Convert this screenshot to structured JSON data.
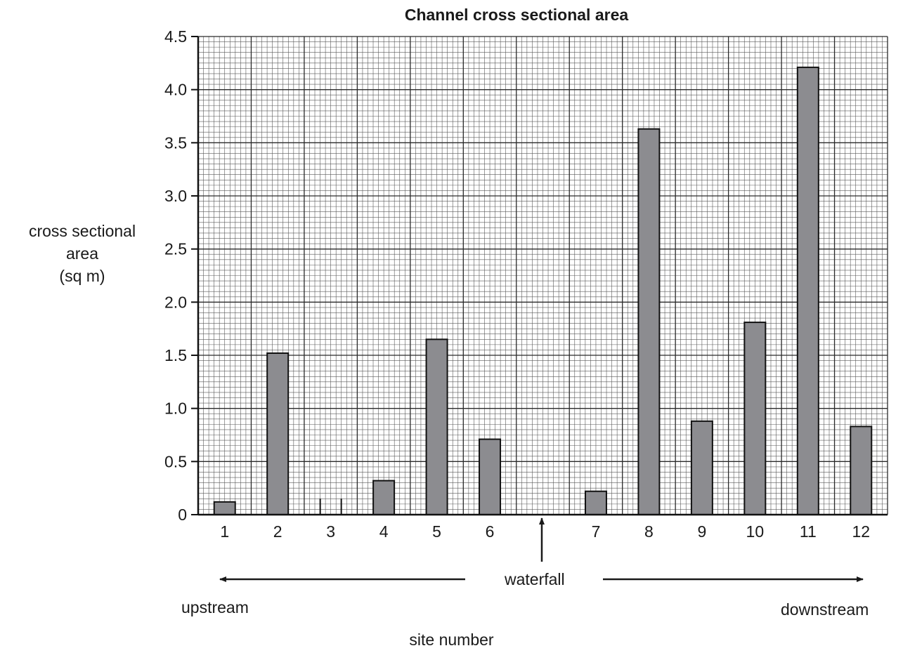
{
  "chart_data": {
    "type": "bar",
    "title": "Channel cross sectional area",
    "ylabel": [
      "cross sectional",
      "area",
      "(sq m)"
    ],
    "xlabel": "site number",
    "ylim": [
      0,
      4.5
    ],
    "y_ticks": [
      "0",
      "0.5",
      "1.0",
      "1.5",
      "2.0",
      "2.5",
      "3.0",
      "3.5",
      "4.0",
      "4.5"
    ],
    "grid": true,
    "categories": [
      "1",
      "2",
      "3",
      "4",
      "5",
      "6",
      "7",
      "8",
      "9",
      "10",
      "11",
      "12"
    ],
    "values": [
      0.12,
      1.52,
      null,
      0.32,
      1.65,
      0.71,
      0.22,
      3.63,
      0.88,
      1.81,
      4.21,
      0.83
    ],
    "bar_color": "#8c8c90",
    "annotations": {
      "waterfall": "waterfall",
      "upstream": "upstream",
      "downstream": "downstream"
    }
  }
}
